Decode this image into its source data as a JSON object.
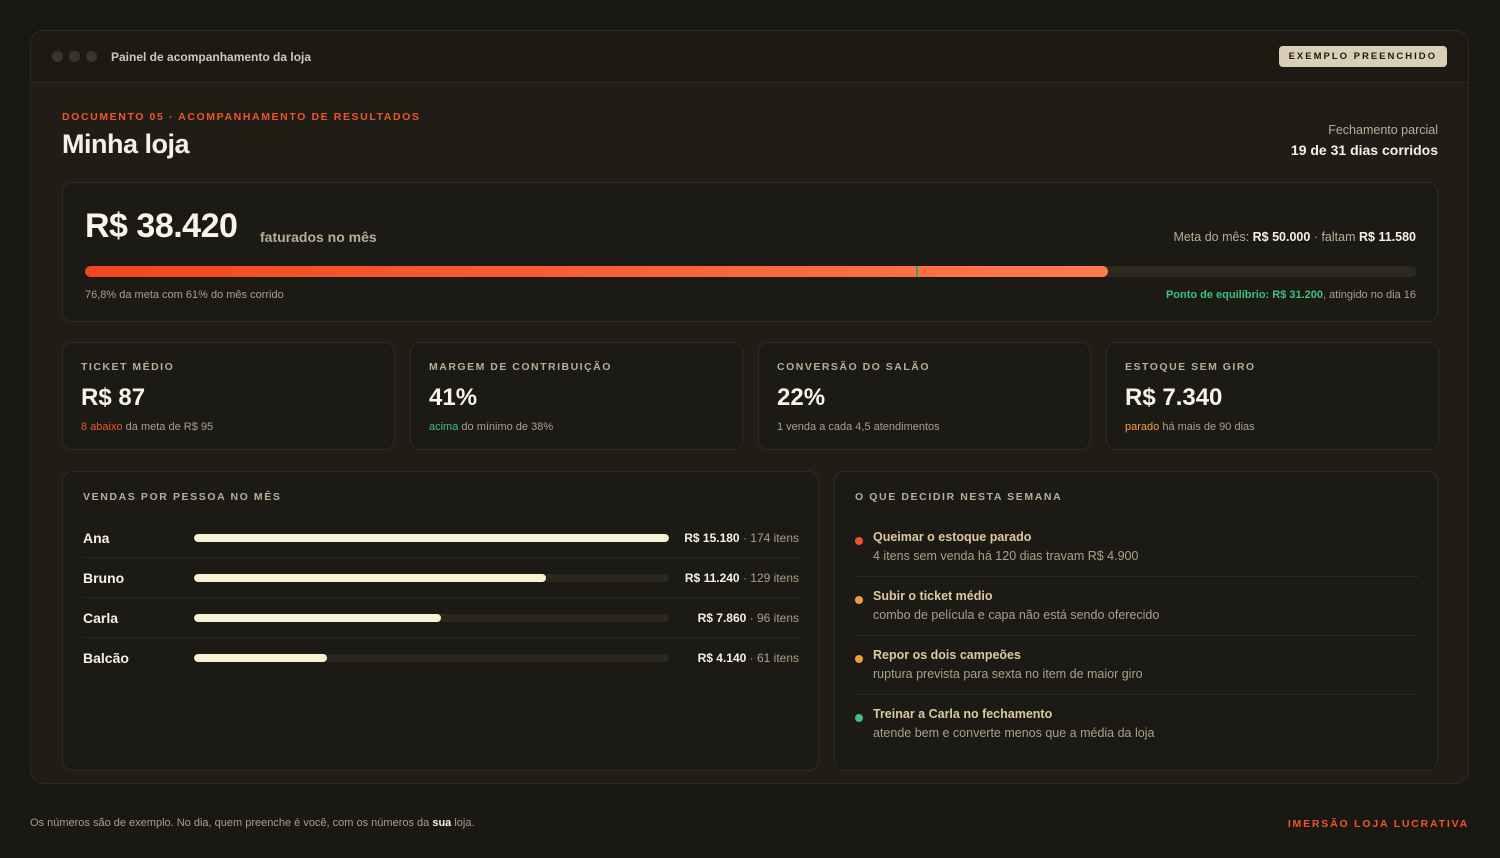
{
  "window": {
    "title": "Painel de acompanhamento da loja",
    "badge": "EXEMPLO PREENCHIDO"
  },
  "header": {
    "eyebrow": "DOCUMENTO 05 · ACOMPANHAMENTO DE RESULTADOS",
    "store_name": "Minha loja",
    "close_label": "Fechamento parcial",
    "close_value": "19 de 31 dias corridos"
  },
  "revenue": {
    "amount": "R$ 38.420",
    "label": "faturados no mês",
    "goal_prefix": "Meta do mês:",
    "goal_value": "R$ 50.000",
    "remaining_prefix": "· faltam",
    "remaining_value": "R$ 11.580",
    "progress_fraction": 0.768,
    "break_even_fraction": 0.624,
    "caption": "76,8% da meta com 61% do mês corrido",
    "break_even_label": "Ponto de equilíbrio: R$ 31.200",
    "break_even_suffix": ", atingido no dia 16"
  },
  "kpis": [
    {
      "label": "TICKET MÉDIO",
      "value": "R$ 87",
      "note_highlight": "8 abaixo",
      "note_rest": " da meta de R$ 95",
      "tone": "red"
    },
    {
      "label": "MARGEM DE CONTRIBUIÇÃO",
      "value": "41%",
      "note_highlight": "acima",
      "note_rest": " do mínimo de 38%",
      "tone": "green"
    },
    {
      "label": "CONVERSÃO DO SALÃO",
      "value": "22%",
      "note_highlight": "",
      "note_rest": "1 venda a cada 4,5 atendimentos",
      "tone": ""
    },
    {
      "label": "ESTOQUE SEM GIRO",
      "value": "R$ 7.340",
      "note_highlight": "parado",
      "note_rest": " há mais de 90 dias",
      "tone": "amber"
    }
  ],
  "sales": {
    "title": "VENDAS POR PESSOA NO MÊS",
    "rows": [
      {
        "name": "Ana",
        "amount": "R$ 15.180",
        "items": "· 174 itens",
        "fraction": 1.0
      },
      {
        "name": "Bruno",
        "amount": "R$ 11.240",
        "items": "· 129 itens",
        "fraction": 0.74
      },
      {
        "name": "Carla",
        "amount": "R$ 7.860",
        "items": "· 96 itens",
        "fraction": 0.52
      },
      {
        "name": "Balcão",
        "amount": "R$ 4.140",
        "items": "· 61 itens",
        "fraction": 0.28
      }
    ]
  },
  "decisions": {
    "title": "O QUE DECIDIR NESTA SEMANA",
    "items": [
      {
        "title": "Queimar o estoque parado",
        "desc": "4 itens sem venda há 120 dias travam R$ 4.900",
        "color": "#f0542c"
      },
      {
        "title": "Subir o ticket médio",
        "desc": "combo de película e capa não está sendo oferecido",
        "color": "#f0a040"
      },
      {
        "title": "Repor os dois campeões",
        "desc": "ruptura prevista para sexta no item de maior giro",
        "color": "#f0a040"
      },
      {
        "title": "Treinar a Carla no fechamento",
        "desc": "atende bem e converte menos que a média da loja",
        "color": "#3fc080"
      }
    ]
  },
  "footer": {
    "note_before": "Os números são de exemplo. No dia, quem preenche é você, com os números da ",
    "note_bold": "sua",
    "note_after": " loja.",
    "brand": "IMERSÃO LOJA LUCRATIVA"
  }
}
